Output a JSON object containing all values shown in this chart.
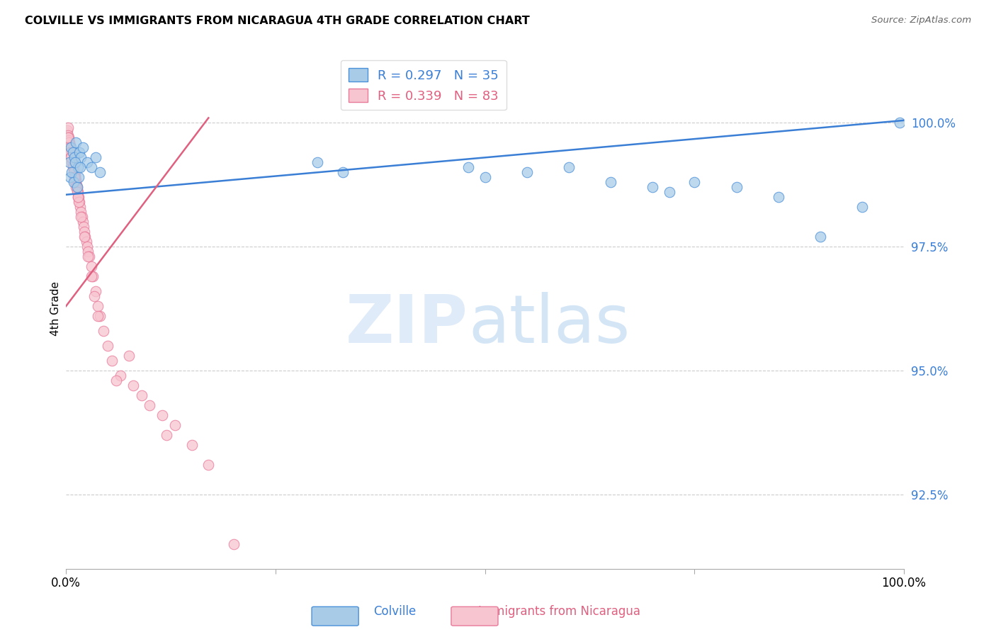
{
  "title": "COLVILLE VS IMMIGRANTS FROM NICARAGUA 4TH GRADE CORRELATION CHART",
  "source": "Source: ZipAtlas.com",
  "ylabel": "4th Grade",
  "ytick_values": [
    92.5,
    95.0,
    97.5,
    100.0
  ],
  "xlim": [
    0.0,
    100.0
  ],
  "ylim": [
    91.0,
    101.5
  ],
  "legend_blue_r": "R = 0.297",
  "legend_blue_n": "N = 35",
  "legend_pink_r": "R = 0.339",
  "legend_pink_n": "N = 83",
  "blue_fill": "#a8cce8",
  "pink_fill": "#f7c5d0",
  "blue_edge": "#4a90d9",
  "pink_edge": "#e87a9a",
  "blue_line_color": "#3a7fd5",
  "pink_line_color": "#e06080",
  "blue_scatter_x": [
    0.4,
    0.6,
    0.8,
    1.0,
    1.2,
    1.4,
    1.6,
    1.8,
    2.0,
    2.5,
    3.0,
    3.5,
    4.0,
    0.5,
    0.7,
    0.9,
    1.1,
    1.3,
    1.5,
    1.7,
    30.0,
    48.0,
    50.0,
    55.0,
    60.0,
    65.0,
    70.0,
    72.0,
    75.0,
    80.0,
    85.0,
    90.0,
    95.0,
    99.5,
    33.0
  ],
  "blue_scatter_y": [
    99.2,
    99.5,
    99.4,
    99.3,
    99.6,
    99.1,
    99.4,
    99.3,
    99.5,
    99.2,
    99.1,
    99.3,
    99.0,
    98.9,
    99.0,
    98.8,
    99.2,
    98.7,
    98.9,
    99.1,
    99.2,
    99.1,
    98.9,
    99.0,
    99.1,
    98.8,
    98.7,
    98.6,
    98.8,
    98.7,
    98.5,
    97.7,
    98.3,
    100.0,
    99.0
  ],
  "pink_scatter_x": [
    0.1,
    0.15,
    0.2,
    0.25,
    0.3,
    0.35,
    0.4,
    0.45,
    0.5,
    0.55,
    0.6,
    0.65,
    0.7,
    0.75,
    0.8,
    0.85,
    0.9,
    0.95,
    1.0,
    1.05,
    1.1,
    1.15,
    1.2,
    1.25,
    1.3,
    1.35,
    1.4,
    1.5,
    1.6,
    1.7,
    1.8,
    1.9,
    2.0,
    2.1,
    2.2,
    2.3,
    2.4,
    2.5,
    2.6,
    2.8,
    3.0,
    3.2,
    3.5,
    3.8,
    4.0,
    4.5,
    5.0,
    5.5,
    6.5,
    7.5,
    8.0,
    9.0,
    10.0,
    11.5,
    13.0,
    15.0,
    17.0,
    0.3,
    0.4,
    0.5,
    0.6,
    0.7,
    0.8,
    0.9,
    1.0,
    1.1,
    1.2,
    1.3,
    1.4,
    1.5,
    0.2,
    0.6,
    1.0,
    1.4,
    1.8,
    2.2,
    2.6,
    3.0,
    3.4,
    3.8,
    6.0,
    12.0,
    20.0
  ],
  "pink_scatter_y": [
    99.8,
    99.85,
    99.9,
    99.75,
    99.7,
    99.65,
    99.6,
    99.55,
    99.5,
    99.45,
    99.4,
    99.35,
    99.3,
    99.25,
    99.2,
    99.15,
    99.1,
    99.05,
    99.0,
    98.95,
    98.9,
    98.85,
    98.8,
    98.75,
    98.7,
    98.65,
    98.6,
    98.5,
    98.4,
    98.3,
    98.2,
    98.1,
    98.0,
    97.9,
    97.8,
    97.7,
    97.6,
    97.5,
    97.4,
    97.3,
    97.1,
    96.9,
    96.6,
    96.3,
    96.1,
    95.8,
    95.5,
    95.2,
    94.9,
    95.3,
    94.7,
    94.5,
    94.3,
    94.1,
    93.9,
    93.5,
    93.1,
    99.6,
    99.5,
    99.4,
    99.3,
    99.2,
    99.1,
    99.0,
    98.9,
    98.8,
    98.7,
    98.6,
    98.5,
    98.4,
    99.7,
    99.3,
    98.9,
    98.5,
    98.1,
    97.7,
    97.3,
    96.9,
    96.5,
    96.1,
    94.8,
    93.7,
    91.5
  ],
  "blue_line_x": [
    0.0,
    100.0
  ],
  "blue_line_y": [
    98.55,
    100.05
  ],
  "pink_line_x": [
    0.0,
    17.0
  ],
  "pink_line_y": [
    96.3,
    100.1
  ]
}
